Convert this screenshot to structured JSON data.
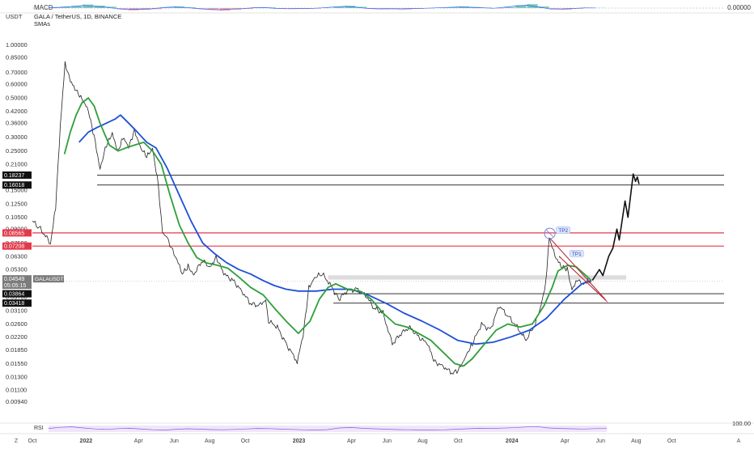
{
  "header": {
    "currency": "USDT",
    "title": "GALA / TetherUS, 1D, BINANCE",
    "indicator": "SMAs",
    "macd_label": "MACD",
    "macd_value": "0.00000",
    "rsi_label": "RSI",
    "rsi_value": "100.00"
  },
  "footer": {
    "scale_left": "Z",
    "scale_right": "A"
  },
  "colors": {
    "price": "#222222",
    "sma_fast": "#2e9e3a",
    "sma_slow": "#1e4fd8",
    "support": "#1a1a1a",
    "resistance": "#e33a4a",
    "zone": "#d6d6d6",
    "tp_label": "#8fa8ef",
    "current_tag": "#7c7c7c"
  },
  "chart_data": {
    "type": "line",
    "title": "GALA / TetherUS, 1D, BINANCE",
    "yscale": "log",
    "ylim": [
      0.0075,
      1.18
    ],
    "xlim": [
      "2021-10-01",
      "2024-10-20"
    ],
    "grid": false,
    "y_ticks": [
      "1.00000",
      "0.85000",
      "0.70000",
      "0.60000",
      "0.50000",
      "0.42000",
      "0.36000",
      "0.30000",
      "0.25000",
      "0.21000",
      "0.15000",
      "0.12500",
      "0.10500",
      "0.09000",
      "0.07500",
      "0.06300",
      "0.05300",
      "0.04400",
      "0.03700",
      "0.03100",
      "0.02600",
      "0.02200",
      "0.01850",
      "0.01550",
      "0.01300",
      "0.01100",
      "0.00940"
    ],
    "x_ticks": [
      {
        "label": "Oct",
        "date": "2021-10-01"
      },
      {
        "label": "2022",
        "date": "2022-01-01"
      },
      {
        "label": "Apr",
        "date": "2022-04-01"
      },
      {
        "label": "Jun",
        "date": "2022-06-01"
      },
      {
        "label": "Aug",
        "date": "2022-08-01"
      },
      {
        "label": "Oct",
        "date": "2022-10-01"
      },
      {
        "label": "2023",
        "date": "2023-01-01"
      },
      {
        "label": "Apr",
        "date": "2023-04-01"
      },
      {
        "label": "Jun",
        "date": "2023-06-01"
      },
      {
        "label": "Aug",
        "date": "2023-08-01"
      },
      {
        "label": "Oct",
        "date": "2023-10-01"
      },
      {
        "label": "2024",
        "date": "2024-01-01"
      },
      {
        "label": "Apr",
        "date": "2024-04-01"
      },
      {
        "label": "Jun",
        "date": "2024-06-01"
      },
      {
        "label": "Aug",
        "date": "2024-08-01"
      },
      {
        "label": "Oct",
        "date": "2024-10-01"
      }
    ],
    "price_labels": [
      {
        "value": "0.18237",
        "style": "black"
      },
      {
        "value": "0.16018",
        "style": "black"
      },
      {
        "value": "0.08565",
        "style": "red"
      },
      {
        "value": "0.07208",
        "style": "red"
      },
      {
        "value": "0.04549",
        "style": "current"
      },
      {
        "value": "05:05:15",
        "style": "current"
      },
      {
        "value": "0.03864",
        "style": "black"
      },
      {
        "value": "0.03418",
        "style": "black"
      }
    ],
    "symbol_tag": "GALAUSDT",
    "series": [
      {
        "key": "price",
        "points": [
          [
            "2021-10-01",
            0.1
          ],
          [
            "2021-10-15",
            0.09
          ],
          [
            "2021-11-01",
            0.075
          ],
          [
            "2021-11-10",
            0.12
          ],
          [
            "2021-11-18",
            0.35
          ],
          [
            "2021-11-26",
            0.8
          ],
          [
            "2021-12-05",
            0.62
          ],
          [
            "2021-12-15",
            0.55
          ],
          [
            "2021-12-25",
            0.5
          ],
          [
            "2022-01-05",
            0.42
          ],
          [
            "2022-01-15",
            0.3
          ],
          [
            "2022-01-25",
            0.2
          ],
          [
            "2022-02-05",
            0.27
          ],
          [
            "2022-02-15",
            0.31
          ],
          [
            "2022-02-25",
            0.25
          ],
          [
            "2022-03-05",
            0.3
          ],
          [
            "2022-03-15",
            0.26
          ],
          [
            "2022-03-25",
            0.33
          ],
          [
            "2022-04-05",
            0.26
          ],
          [
            "2022-04-15",
            0.23
          ],
          [
            "2022-04-25",
            0.26
          ],
          [
            "2022-05-05",
            0.16
          ],
          [
            "2022-05-12",
            0.085
          ],
          [
            "2022-05-20",
            0.08
          ],
          [
            "2022-06-01",
            0.066
          ],
          [
            "2022-06-15",
            0.05
          ],
          [
            "2022-06-25",
            0.055
          ],
          [
            "2022-07-05",
            0.05
          ],
          [
            "2022-07-20",
            0.06
          ],
          [
            "2022-08-01",
            0.054
          ],
          [
            "2022-08-12",
            0.063
          ],
          [
            "2022-08-25",
            0.05
          ],
          [
            "2022-09-10",
            0.046
          ],
          [
            "2022-09-25",
            0.04
          ],
          [
            "2022-10-10",
            0.034
          ],
          [
            "2022-10-25",
            0.033
          ],
          [
            "2022-11-05",
            0.036
          ],
          [
            "2022-11-10",
            0.027
          ],
          [
            "2022-11-25",
            0.025
          ],
          [
            "2022-12-10",
            0.02
          ],
          [
            "2022-12-29",
            0.016
          ],
          [
            "2023-01-08",
            0.022
          ],
          [
            "2023-01-18",
            0.042
          ],
          [
            "2023-01-28",
            0.048
          ],
          [
            "2023-02-10",
            0.05
          ],
          [
            "2023-02-25",
            0.043
          ],
          [
            "2023-03-10",
            0.036
          ],
          [
            "2023-03-25",
            0.04
          ],
          [
            "2023-04-10",
            0.041
          ],
          [
            "2023-04-25",
            0.038
          ],
          [
            "2023-05-10",
            0.032
          ],
          [
            "2023-05-25",
            0.03
          ],
          [
            "2023-06-10",
            0.02
          ],
          [
            "2023-06-25",
            0.023
          ],
          [
            "2023-07-10",
            0.025
          ],
          [
            "2023-07-25",
            0.022
          ],
          [
            "2023-08-10",
            0.02
          ],
          [
            "2023-08-20",
            0.016
          ],
          [
            "2023-09-05",
            0.015
          ],
          [
            "2023-09-20",
            0.0137
          ],
          [
            "2023-10-01",
            0.014
          ],
          [
            "2023-10-15",
            0.0175
          ],
          [
            "2023-10-25",
            0.02
          ],
          [
            "2023-11-10",
            0.026
          ],
          [
            "2023-11-25",
            0.024
          ],
          [
            "2023-12-10",
            0.033
          ],
          [
            "2023-12-25",
            0.029
          ],
          [
            "2024-01-10",
            0.025
          ],
          [
            "2024-01-25",
            0.021
          ],
          [
            "2024-02-10",
            0.026
          ],
          [
            "2024-02-20",
            0.033
          ],
          [
            "2024-02-28",
            0.045
          ],
          [
            "2024-03-05",
            0.08
          ],
          [
            "2024-03-10",
            0.07
          ],
          [
            "2024-03-15",
            0.064
          ],
          [
            "2024-03-25",
            0.055
          ],
          [
            "2024-04-05",
            0.053
          ],
          [
            "2024-04-13",
            0.041
          ],
          [
            "2024-04-22",
            0.047
          ],
          [
            "2024-05-01",
            0.043
          ],
          [
            "2024-05-10",
            0.046
          ],
          [
            "2024-05-16",
            0.04549
          ]
        ]
      },
      {
        "key": "projection",
        "points": [
          [
            "2024-05-18",
            0.046
          ],
          [
            "2024-05-30",
            0.053
          ],
          [
            "2024-06-05",
            0.049
          ],
          [
            "2024-06-15",
            0.063
          ],
          [
            "2024-06-22",
            0.07
          ],
          [
            "2024-06-29",
            0.09
          ],
          [
            "2024-07-03",
            0.078
          ],
          [
            "2024-07-13",
            0.13
          ],
          [
            "2024-07-18",
            0.105
          ],
          [
            "2024-07-27",
            0.185
          ],
          [
            "2024-07-31",
            0.168
          ],
          [
            "2024-08-03",
            0.178
          ],
          [
            "2024-08-06",
            0.162
          ]
        ]
      },
      {
        "key": "sma_fast",
        "points": [
          [
            "2021-11-25",
            0.24
          ],
          [
            "2021-12-05",
            0.32
          ],
          [
            "2021-12-15",
            0.4
          ],
          [
            "2021-12-25",
            0.47
          ],
          [
            "2022-01-05",
            0.5
          ],
          [
            "2022-01-15",
            0.45
          ],
          [
            "2022-01-25",
            0.36
          ],
          [
            "2022-02-10",
            0.27
          ],
          [
            "2022-02-25",
            0.25
          ],
          [
            "2022-03-10",
            0.26
          ],
          [
            "2022-03-25",
            0.27
          ],
          [
            "2022-04-10",
            0.28
          ],
          [
            "2022-04-25",
            0.25
          ],
          [
            "2022-05-10",
            0.21
          ],
          [
            "2022-05-25",
            0.14
          ],
          [
            "2022-06-10",
            0.095
          ],
          [
            "2022-06-25",
            0.075
          ],
          [
            "2022-07-10",
            0.062
          ],
          [
            "2022-07-25",
            0.058
          ],
          [
            "2022-08-15",
            0.056
          ],
          [
            "2022-09-01",
            0.054
          ],
          [
            "2022-09-20",
            0.048
          ],
          [
            "2022-10-10",
            0.042
          ],
          [
            "2022-11-01",
            0.038
          ],
          [
            "2022-11-20",
            0.032
          ],
          [
            "2022-12-10",
            0.027
          ],
          [
            "2022-12-31",
            0.023
          ],
          [
            "2023-01-20",
            0.027
          ],
          [
            "2023-02-05",
            0.036
          ],
          [
            "2023-02-20",
            0.042
          ],
          [
            "2023-03-05",
            0.044
          ],
          [
            "2023-03-25",
            0.041
          ],
          [
            "2023-04-15",
            0.04
          ],
          [
            "2023-05-05",
            0.036
          ],
          [
            "2023-05-25",
            0.03
          ],
          [
            "2023-06-15",
            0.026
          ],
          [
            "2023-07-05",
            0.025
          ],
          [
            "2023-07-25",
            0.023
          ],
          [
            "2023-08-15",
            0.021
          ],
          [
            "2023-09-05",
            0.018
          ],
          [
            "2023-09-25",
            0.0155
          ],
          [
            "2023-10-10",
            0.015
          ],
          [
            "2023-10-25",
            0.0165
          ],
          [
            "2023-11-15",
            0.02
          ],
          [
            "2023-12-05",
            0.024
          ],
          [
            "2023-12-25",
            0.026
          ],
          [
            "2024-01-15",
            0.025
          ],
          [
            "2024-02-05",
            0.026
          ],
          [
            "2024-02-25",
            0.033
          ],
          [
            "2024-03-10",
            0.042
          ],
          [
            "2024-03-20",
            0.052
          ],
          [
            "2024-04-05",
            0.056
          ],
          [
            "2024-04-20",
            0.055
          ],
          [
            "2024-05-10",
            0.048
          ],
          [
            "2024-05-16",
            0.046
          ]
        ]
      },
      {
        "key": "sma_slow",
        "points": [
          [
            "2021-12-20",
            0.28
          ],
          [
            "2022-01-05",
            0.32
          ],
          [
            "2022-01-20",
            0.34
          ],
          [
            "2022-02-05",
            0.36
          ],
          [
            "2022-02-20",
            0.38
          ],
          [
            "2022-03-01",
            0.4
          ],
          [
            "2022-03-15",
            0.36
          ],
          [
            "2022-03-30",
            0.32
          ],
          [
            "2022-04-15",
            0.28
          ],
          [
            "2022-05-01",
            0.26
          ],
          [
            "2022-05-20",
            0.2
          ],
          [
            "2022-06-10",
            0.14
          ],
          [
            "2022-06-30",
            0.1
          ],
          [
            "2022-07-20",
            0.075
          ],
          [
            "2022-08-10",
            0.065
          ],
          [
            "2022-08-30",
            0.058
          ],
          [
            "2022-09-20",
            0.053
          ],
          [
            "2022-10-10",
            0.05
          ],
          [
            "2022-10-31",
            0.046
          ],
          [
            "2022-11-20",
            0.043
          ],
          [
            "2022-12-10",
            0.041
          ],
          [
            "2022-12-31",
            0.04
          ],
          [
            "2023-01-31",
            0.04
          ],
          [
            "2023-02-28",
            0.041
          ],
          [
            "2023-03-31",
            0.041
          ],
          [
            "2023-04-30",
            0.038
          ],
          [
            "2023-05-31",
            0.034
          ],
          [
            "2023-06-30",
            0.03
          ],
          [
            "2023-07-31",
            0.027
          ],
          [
            "2023-08-31",
            0.024
          ],
          [
            "2023-09-30",
            0.021
          ],
          [
            "2023-10-31",
            0.02
          ],
          [
            "2023-11-30",
            0.0205
          ],
          [
            "2023-12-31",
            0.022
          ],
          [
            "2024-01-31",
            0.024
          ],
          [
            "2024-02-29",
            0.028
          ],
          [
            "2024-03-31",
            0.036
          ],
          [
            "2024-04-30",
            0.044
          ],
          [
            "2024-05-16",
            0.046
          ]
        ]
      }
    ],
    "levels": [
      {
        "value": 0.18237,
        "start": "2022-01-20",
        "end": "2024-10-20",
        "style": "black"
      },
      {
        "value": 0.16018,
        "start": "2022-01-20",
        "end": "2024-10-20",
        "style": "black"
      },
      {
        "value": 0.08565,
        "start": "2021-10-01",
        "end": "2024-10-20",
        "style": "red"
      },
      {
        "value": 0.07208,
        "start": "2021-10-01",
        "end": "2024-10-20",
        "style": "red"
      },
      {
        "value": 0.03864,
        "start": "2023-03-01",
        "end": "2024-10-20",
        "style": "black"
      },
      {
        "value": 0.03418,
        "start": "2023-03-01",
        "end": "2024-10-20",
        "style": "black"
      },
      {
        "value": 0.04549,
        "start": "2021-10-01",
        "end": "2024-10-20",
        "style": "dotted"
      }
    ],
    "zone": {
      "start": "2023-02-20",
      "end": "2024-07-15",
      "low": 0.0465,
      "high": 0.0492
    },
    "trendlines": [
      {
        "from": [
          "2024-03-06",
          0.08
        ],
        "to": [
          "2024-06-08",
          0.0362
        ]
      },
      {
        "from": [
          "2024-03-22",
          0.063
        ],
        "to": [
          "2024-06-11",
          0.0352
        ]
      }
    ],
    "marker": {
      "date": "2024-03-06",
      "value": 0.085
    },
    "annotations": [
      {
        "text": "TP2",
        "date": "2024-03-20",
        "value": 0.087
      },
      {
        "text": "TP1",
        "date": "2024-04-12",
        "value": 0.064
      }
    ],
    "macd_hist": [
      0.3,
      0.6,
      1.2,
      2.0,
      1.4,
      0.8,
      -0.5,
      -1.2,
      -0.9,
      -0.6,
      0.4,
      0.9,
      0.5,
      -0.4,
      -1.0,
      -1.4,
      -0.8,
      -0.5,
      0.3,
      0.4,
      -0.3,
      -0.5,
      -0.4,
      -0.3,
      0.2,
      0.8,
      1.3,
      0.7,
      -0.3,
      -0.6,
      -0.5,
      -0.7,
      -0.4,
      -0.2,
      0.2,
      0.5,
      0.9,
      0.6,
      0.3,
      -0.2,
      0.6,
      1.6,
      2.2,
      0.9,
      -0.6,
      -0.8,
      -0.4,
      0.2,
      0.1
    ],
    "rsi": [
      55,
      72,
      80,
      62,
      48,
      40,
      52,
      58,
      45,
      35,
      30,
      42,
      50,
      44,
      38,
      35,
      40,
      48,
      55,
      52,
      45,
      40,
      34,
      30,
      38,
      62,
      70,
      58,
      50,
      44,
      38,
      35,
      32,
      30,
      34,
      42,
      50,
      58,
      55,
      60,
      66,
      78,
      84,
      62,
      55,
      50,
      46,
      52,
      54
    ]
  }
}
